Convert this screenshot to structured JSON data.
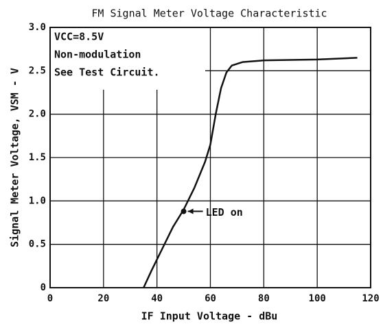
{
  "chart_data": {
    "type": "line",
    "title": "FM Signal Meter Voltage Characteristic",
    "x_label": "IF Input Voltage - dBu",
    "y_label": "Signal Meter Voltage, VSM - V",
    "annotations": [
      "VCC=8.5V",
      "Non-modulation",
      "See Test Circuit."
    ],
    "marker": {
      "label": "LED on",
      "x": 50,
      "y": 0.88
    },
    "xlim": [
      0,
      120
    ],
    "xticks": [
      0,
      20,
      40,
      60,
      80,
      100,
      120
    ],
    "ylim": [
      0,
      3.0
    ],
    "yticks": [
      0,
      {
        "value": 0.5,
        "label": "0.5"
      },
      {
        "value": 1.0,
        "label": "1.0"
      },
      {
        "value": 1.5,
        "label": "1.5"
      },
      {
        "value": 2.0,
        "label": "2.0"
      },
      {
        "value": 2.5,
        "label": "2.5"
      },
      {
        "value": 3.0,
        "label": "3.0"
      }
    ],
    "grid": true,
    "series": [
      {
        "color": "#111111",
        "x": [
          35,
          38,
          42,
          46,
          50,
          54,
          58,
          60,
          62,
          64,
          66,
          68,
          72,
          80,
          100,
          115
        ],
        "values": [
          0,
          0.2,
          0.45,
          0.7,
          0.9,
          1.15,
          1.45,
          1.65,
          2.0,
          2.3,
          2.48,
          2.56,
          2.6,
          2.62,
          2.63,
          2.65
        ]
      }
    ]
  }
}
